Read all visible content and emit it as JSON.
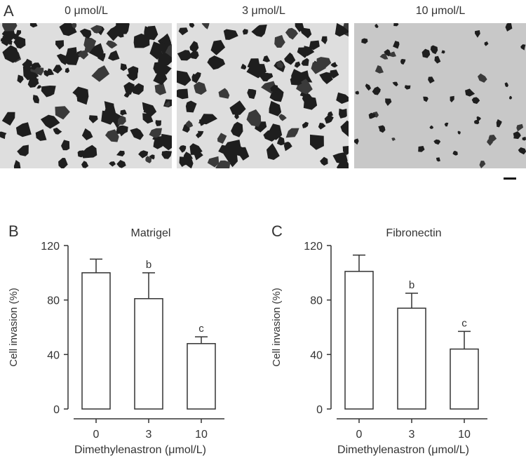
{
  "panel_a": {
    "letter": "A",
    "conditions": [
      "0 μmol/L",
      "3 μmol/L",
      "10 μmol/L"
    ],
    "cell_density": [
      1.0,
      0.85,
      0.45
    ]
  },
  "chart_data": [
    {
      "type": "bar",
      "panel": "B",
      "title": "Matrigel",
      "xlabel": "Dimethylenastron (μmol/L)",
      "ylabel": "Cell invasion (%)",
      "categories": [
        "0",
        "3",
        "10"
      ],
      "values": [
        100,
        81,
        48
      ],
      "error": [
        10,
        19,
        5
      ],
      "annotations": [
        "",
        "b",
        "c"
      ],
      "yticks": [
        "0",
        "40",
        "80",
        "120"
      ],
      "ylim": [
        0,
        120
      ],
      "grid": false
    },
    {
      "type": "bar",
      "panel": "C",
      "title": "Fibronectin",
      "xlabel": "Dimethylenastron (μmol/L)",
      "ylabel": "Cell invasion (%)",
      "categories": [
        "0",
        "3",
        "10"
      ],
      "values": [
        101,
        74,
        44
      ],
      "error": [
        12,
        11,
        13
      ],
      "annotations": [
        "",
        "b",
        "c"
      ],
      "yticks": [
        "0",
        "40",
        "80",
        "120"
      ],
      "ylim": [
        0,
        120
      ],
      "grid": false
    }
  ]
}
